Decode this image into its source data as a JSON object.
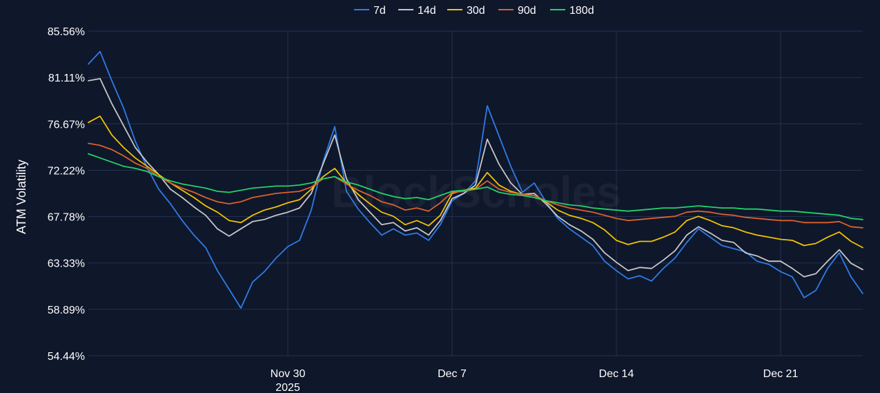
{
  "watermark": "BlockScholes",
  "chart_data": {
    "type": "line",
    "ylabel": "ATM Volatility",
    "xlabel": "",
    "ylim": [
      54.44,
      85.56
    ],
    "y_ticks": [
      "54.44%",
      "58.89%",
      "63.33%",
      "67.78%",
      "72.22%",
      "76.67%",
      "81.11%",
      "85.56%"
    ],
    "x_range": [
      "2025-11-21T12:00",
      "2025-12-24T12:00"
    ],
    "x_ticks": [
      {
        "date": "2025-11-30",
        "label": "Nov 30",
        "sublabel": "2025"
      },
      {
        "date": "2025-12-07",
        "label": "Dec 7",
        "sublabel": ""
      },
      {
        "date": "2025-12-14",
        "label": "Dec 14",
        "sublabel": ""
      },
      {
        "date": "2025-12-21",
        "label": "Dec 21",
        "sublabel": ""
      }
    ],
    "grid": true,
    "legend_position": "top",
    "series": [
      {
        "name": "7d",
        "color": "#2f7ce8",
        "x": [
          "2025-11-21T12:00",
          "2025-11-22T00:00",
          "2025-11-22T12:00",
          "2025-11-23T00:00",
          "2025-11-23T12:00",
          "2025-11-24T00:00",
          "2025-11-24T12:00",
          "2025-11-25T00:00",
          "2025-11-25T12:00",
          "2025-11-26T00:00",
          "2025-11-26T12:00",
          "2025-11-27T00:00",
          "2025-11-27T12:00",
          "2025-11-28T00:00",
          "2025-11-28T12:00",
          "2025-11-29T00:00",
          "2025-11-29T12:00",
          "2025-11-30T00:00",
          "2025-11-30T12:00",
          "2025-12-01T00:00",
          "2025-12-01T12:00",
          "2025-12-02T00:00",
          "2025-12-02T12:00",
          "2025-12-03T00:00",
          "2025-12-03T12:00",
          "2025-12-04T00:00",
          "2025-12-04T12:00",
          "2025-12-05T00:00",
          "2025-12-05T12:00",
          "2025-12-06T00:00",
          "2025-12-06T12:00",
          "2025-12-07T00:00",
          "2025-12-07T12:00",
          "2025-12-08T00:00",
          "2025-12-08T12:00",
          "2025-12-09T00:00",
          "2025-12-09T12:00",
          "2025-12-10T00:00",
          "2025-12-10T12:00",
          "2025-12-11T00:00",
          "2025-12-11T12:00",
          "2025-12-12T00:00",
          "2025-12-12T12:00",
          "2025-12-13T00:00",
          "2025-12-13T12:00",
          "2025-12-14T00:00",
          "2025-12-14T12:00",
          "2025-12-15T00:00",
          "2025-12-15T12:00",
          "2025-12-16T00:00",
          "2025-12-16T12:00",
          "2025-12-17T00:00",
          "2025-12-17T12:00",
          "2025-12-18T00:00",
          "2025-12-18T12:00",
          "2025-12-19T00:00",
          "2025-12-19T12:00",
          "2025-12-20T00:00",
          "2025-12-20T12:00",
          "2025-12-21T00:00",
          "2025-12-21T12:00",
          "2025-12-22T00:00",
          "2025-12-22T12:00",
          "2025-12-23T00:00",
          "2025-12-23T12:00",
          "2025-12-24T00:00",
          "2025-12-24T12:00"
        ],
        "values": [
          82.4,
          83.6,
          80.8,
          78.2,
          75.0,
          72.5,
          70.4,
          69.0,
          67.4,
          66.0,
          64.8,
          62.6,
          60.8,
          59.0,
          61.5,
          62.5,
          63.8,
          64.9,
          65.5,
          68.4,
          73.0,
          76.4,
          70.2,
          68.5,
          67.2,
          66.0,
          66.6,
          66.0,
          66.2,
          65.5,
          67.0,
          69.3,
          70.0,
          71.2,
          78.4,
          75.5,
          72.6,
          70.1,
          71.0,
          69.2,
          67.6,
          66.6,
          65.8,
          65.0,
          63.5,
          62.6,
          61.8,
          62.1,
          61.6,
          62.8,
          63.8,
          65.3,
          66.6,
          65.8,
          65.0,
          64.7,
          64.4,
          63.5,
          63.2,
          62.5,
          62.0,
          60.0,
          60.7,
          62.8,
          64.3,
          62.0,
          60.4
        ]
      },
      {
        "name": "14d",
        "color": "#c8c8c8",
        "x": [
          "2025-11-21T12:00",
          "2025-11-22T00:00",
          "2025-11-22T12:00",
          "2025-11-23T00:00",
          "2025-11-23T12:00",
          "2025-11-24T00:00",
          "2025-11-24T12:00",
          "2025-11-25T00:00",
          "2025-11-25T12:00",
          "2025-11-26T00:00",
          "2025-11-26T12:00",
          "2025-11-27T00:00",
          "2025-11-27T12:00",
          "2025-11-28T00:00",
          "2025-11-28T12:00",
          "2025-11-29T00:00",
          "2025-11-29T12:00",
          "2025-11-30T00:00",
          "2025-11-30T12:00",
          "2025-12-01T00:00",
          "2025-12-01T12:00",
          "2025-12-02T00:00",
          "2025-12-02T12:00",
          "2025-12-03T00:00",
          "2025-12-03T12:00",
          "2025-12-04T00:00",
          "2025-12-04T12:00",
          "2025-12-05T00:00",
          "2025-12-05T12:00",
          "2025-12-06T00:00",
          "2025-12-06T12:00",
          "2025-12-07T00:00",
          "2025-12-07T12:00",
          "2025-12-08T00:00",
          "2025-12-08T12:00",
          "2025-12-09T00:00",
          "2025-12-09T12:00",
          "2025-12-10T00:00",
          "2025-12-10T12:00",
          "2025-12-11T00:00",
          "2025-12-11T12:00",
          "2025-12-12T00:00",
          "2025-12-12T12:00",
          "2025-12-13T00:00",
          "2025-12-13T12:00",
          "2025-12-14T00:00",
          "2025-12-14T12:00",
          "2025-12-15T00:00",
          "2025-12-15T12:00",
          "2025-12-16T00:00",
          "2025-12-16T12:00",
          "2025-12-17T00:00",
          "2025-12-17T12:00",
          "2025-12-18T00:00",
          "2025-12-18T12:00",
          "2025-12-19T00:00",
          "2025-12-19T12:00",
          "2025-12-20T00:00",
          "2025-12-20T12:00",
          "2025-12-21T00:00",
          "2025-12-21T12:00",
          "2025-12-22T00:00",
          "2025-12-22T12:00",
          "2025-12-23T00:00",
          "2025-12-23T12:00",
          "2025-12-24T00:00",
          "2025-12-24T12:00"
        ],
        "values": [
          80.8,
          81.0,
          78.6,
          76.5,
          74.4,
          73.0,
          71.8,
          70.4,
          69.6,
          68.7,
          67.9,
          66.6,
          65.9,
          66.6,
          67.3,
          67.5,
          67.9,
          68.2,
          68.6,
          70.0,
          72.8,
          75.6,
          71.4,
          69.4,
          68.2,
          67.0,
          67.2,
          66.4,
          66.7,
          66.0,
          67.4,
          69.5,
          70.0,
          70.8,
          75.2,
          72.8,
          71.0,
          69.9,
          70.0,
          69.0,
          67.8,
          67.0,
          66.4,
          65.6,
          64.3,
          63.4,
          62.6,
          62.9,
          62.8,
          63.6,
          64.5,
          66.0,
          66.8,
          66.2,
          65.5,
          65.3,
          64.3,
          64.0,
          63.5,
          63.5,
          62.8,
          62.0,
          62.3,
          63.5,
          64.6,
          63.3,
          62.7
        ]
      },
      {
        "name": "30d",
        "color": "#f2c300",
        "x": [
          "2025-11-21T12:00",
          "2025-11-22T00:00",
          "2025-11-22T12:00",
          "2025-11-23T00:00",
          "2025-11-23T12:00",
          "2025-11-24T00:00",
          "2025-11-24T12:00",
          "2025-11-25T00:00",
          "2025-11-25T12:00",
          "2025-11-26T00:00",
          "2025-11-26T12:00",
          "2025-11-27T00:00",
          "2025-11-27T12:00",
          "2025-11-28T00:00",
          "2025-11-28T12:00",
          "2025-11-29T00:00",
          "2025-11-29T12:00",
          "2025-11-30T00:00",
          "2025-11-30T12:00",
          "2025-12-01T00:00",
          "2025-12-01T12:00",
          "2025-12-02T00:00",
          "2025-12-02T12:00",
          "2025-12-03T00:00",
          "2025-12-03T12:00",
          "2025-12-04T00:00",
          "2025-12-04T12:00",
          "2025-12-05T00:00",
          "2025-12-05T12:00",
          "2025-12-06T00:00",
          "2025-12-06T12:00",
          "2025-12-07T00:00",
          "2025-12-07T12:00",
          "2025-12-08T00:00",
          "2025-12-08T12:00",
          "2025-12-09T00:00",
          "2025-12-09T12:00",
          "2025-12-10T00:00",
          "2025-12-10T12:00",
          "2025-12-11T00:00",
          "2025-12-11T12:00",
          "2025-12-12T00:00",
          "2025-12-12T12:00",
          "2025-12-13T00:00",
          "2025-12-13T12:00",
          "2025-12-14T00:00",
          "2025-12-14T12:00",
          "2025-12-15T00:00",
          "2025-12-15T12:00",
          "2025-12-16T00:00",
          "2025-12-16T12:00",
          "2025-12-17T00:00",
          "2025-12-17T12:00",
          "2025-12-18T00:00",
          "2025-12-18T12:00",
          "2025-12-19T00:00",
          "2025-12-19T12:00",
          "2025-12-20T00:00",
          "2025-12-20T12:00",
          "2025-12-21T00:00",
          "2025-12-21T12:00",
          "2025-12-22T00:00",
          "2025-12-22T12:00",
          "2025-12-23T00:00",
          "2025-12-23T12:00",
          "2025-12-24T00:00",
          "2025-12-24T12:00"
        ],
        "values": [
          76.8,
          77.4,
          75.6,
          74.4,
          73.4,
          72.6,
          71.8,
          71.0,
          70.3,
          69.6,
          68.8,
          68.2,
          67.4,
          67.2,
          67.9,
          68.4,
          68.7,
          69.1,
          69.4,
          70.4,
          71.6,
          72.4,
          71.0,
          69.9,
          69.0,
          68.2,
          67.8,
          67.0,
          67.4,
          66.9,
          67.9,
          70.0,
          70.3,
          70.5,
          72.0,
          70.8,
          70.2,
          69.9,
          69.8,
          69.2,
          68.4,
          67.9,
          67.6,
          67.2,
          66.5,
          65.5,
          65.1,
          65.4,
          65.4,
          65.8,
          66.3,
          67.4,
          67.8,
          67.4,
          66.9,
          66.7,
          66.3,
          66.0,
          65.8,
          65.6,
          65.5,
          65.0,
          65.2,
          65.8,
          66.3,
          65.4,
          64.8
        ]
      },
      {
        "name": "90d",
        "color": "#d9622b",
        "x": [
          "2025-11-21T12:00",
          "2025-11-22T00:00",
          "2025-11-22T12:00",
          "2025-11-23T00:00",
          "2025-11-23T12:00",
          "2025-11-24T00:00",
          "2025-11-24T12:00",
          "2025-11-25T00:00",
          "2025-11-25T12:00",
          "2025-11-26T00:00",
          "2025-11-26T12:00",
          "2025-11-27T00:00",
          "2025-11-27T12:00",
          "2025-11-28T00:00",
          "2025-11-28T12:00",
          "2025-11-29T00:00",
          "2025-11-29T12:00",
          "2025-11-30T00:00",
          "2025-11-30T12:00",
          "2025-12-01T00:00",
          "2025-12-01T12:00",
          "2025-12-02T00:00",
          "2025-12-02T12:00",
          "2025-12-03T00:00",
          "2025-12-03T12:00",
          "2025-12-04T00:00",
          "2025-12-04T12:00",
          "2025-12-05T00:00",
          "2025-12-05T12:00",
          "2025-12-06T00:00",
          "2025-12-06T12:00",
          "2025-12-07T00:00",
          "2025-12-07T12:00",
          "2025-12-08T00:00",
          "2025-12-08T12:00",
          "2025-12-09T00:00",
          "2025-12-09T12:00",
          "2025-12-10T00:00",
          "2025-12-10T12:00",
          "2025-12-11T00:00",
          "2025-12-11T12:00",
          "2025-12-12T00:00",
          "2025-12-12T12:00",
          "2025-12-13T00:00",
          "2025-12-13T12:00",
          "2025-12-14T00:00",
          "2025-12-14T12:00",
          "2025-12-15T00:00",
          "2025-12-15T12:00",
          "2025-12-16T00:00",
          "2025-12-16T12:00",
          "2025-12-17T00:00",
          "2025-12-17T12:00",
          "2025-12-18T00:00",
          "2025-12-18T12:00",
          "2025-12-19T00:00",
          "2025-12-19T12:00",
          "2025-12-20T00:00",
          "2025-12-20T12:00",
          "2025-12-21T00:00",
          "2025-12-21T12:00",
          "2025-12-22T00:00",
          "2025-12-22T12:00",
          "2025-12-23T00:00",
          "2025-12-23T12:00",
          "2025-12-24T00:00",
          "2025-12-24T12:00"
        ],
        "values": [
          74.8,
          74.6,
          74.2,
          73.6,
          72.9,
          72.4,
          71.6,
          71.0,
          70.5,
          70.1,
          69.6,
          69.2,
          69.0,
          69.2,
          69.6,
          69.8,
          70.0,
          70.1,
          70.2,
          70.6,
          71.4,
          71.6,
          70.9,
          70.3,
          69.8,
          69.2,
          68.9,
          68.4,
          68.6,
          68.3,
          69.1,
          70.1,
          70.2,
          70.4,
          71.2,
          70.4,
          70.1,
          69.9,
          69.8,
          69.3,
          68.9,
          68.6,
          68.4,
          68.2,
          67.9,
          67.6,
          67.4,
          67.5,
          67.6,
          67.7,
          67.8,
          68.2,
          68.3,
          68.2,
          68.0,
          67.9,
          67.7,
          67.6,
          67.5,
          67.4,
          67.4,
          67.2,
          67.2,
          67.2,
          67.3,
          66.8,
          66.7
        ]
      },
      {
        "name": "180d",
        "color": "#21d46a",
        "x": [
          "2025-11-21T12:00",
          "2025-11-22T00:00",
          "2025-11-22T12:00",
          "2025-11-23T00:00",
          "2025-11-23T12:00",
          "2025-11-24T00:00",
          "2025-11-24T12:00",
          "2025-11-25T00:00",
          "2025-11-25T12:00",
          "2025-11-26T00:00",
          "2025-11-26T12:00",
          "2025-11-27T00:00",
          "2025-11-27T12:00",
          "2025-11-28T00:00",
          "2025-11-28T12:00",
          "2025-11-29T00:00",
          "2025-11-29T12:00",
          "2025-11-30T00:00",
          "2025-11-30T12:00",
          "2025-12-01T00:00",
          "2025-12-01T12:00",
          "2025-12-02T00:00",
          "2025-12-02T12:00",
          "2025-12-03T00:00",
          "2025-12-03T12:00",
          "2025-12-04T00:00",
          "2025-12-04T12:00",
          "2025-12-05T00:00",
          "2025-12-05T12:00",
          "2025-12-06T00:00",
          "2025-12-06T12:00",
          "2025-12-07T00:00",
          "2025-12-07T12:00",
          "2025-12-08T00:00",
          "2025-12-08T12:00",
          "2025-12-09T00:00",
          "2025-12-09T12:00",
          "2025-12-10T00:00",
          "2025-12-10T12:00",
          "2025-12-11T00:00",
          "2025-12-11T12:00",
          "2025-12-12T00:00",
          "2025-12-12T12:00",
          "2025-12-13T00:00",
          "2025-12-13T12:00",
          "2025-12-14T00:00",
          "2025-12-14T12:00",
          "2025-12-15T00:00",
          "2025-12-15T12:00",
          "2025-12-16T00:00",
          "2025-12-16T12:00",
          "2025-12-17T00:00",
          "2025-12-17T12:00",
          "2025-12-18T00:00",
          "2025-12-18T12:00",
          "2025-12-19T00:00",
          "2025-12-19T12:00",
          "2025-12-20T00:00",
          "2025-12-20T12:00",
          "2025-12-21T00:00",
          "2025-12-21T12:00",
          "2025-12-22T00:00",
          "2025-12-22T12:00",
          "2025-12-23T00:00",
          "2025-12-23T12:00",
          "2025-12-24T00:00",
          "2025-12-24T12:00"
        ],
        "values": [
          73.8,
          73.4,
          73.0,
          72.6,
          72.4,
          72.1,
          71.6,
          71.2,
          70.9,
          70.7,
          70.5,
          70.2,
          70.1,
          70.3,
          70.5,
          70.6,
          70.7,
          70.7,
          70.8,
          71.0,
          71.4,
          71.6,
          71.1,
          70.8,
          70.4,
          70.0,
          69.7,
          69.5,
          69.6,
          69.4,
          69.8,
          70.2,
          70.3,
          70.4,
          70.6,
          70.1,
          69.9,
          69.8,
          69.6,
          69.3,
          69.1,
          68.9,
          68.8,
          68.6,
          68.5,
          68.4,
          68.3,
          68.4,
          68.5,
          68.6,
          68.6,
          68.7,
          68.8,
          68.7,
          68.6,
          68.6,
          68.5,
          68.5,
          68.4,
          68.3,
          68.3,
          68.2,
          68.1,
          68.0,
          67.9,
          67.6,
          67.5
        ]
      }
    ]
  }
}
